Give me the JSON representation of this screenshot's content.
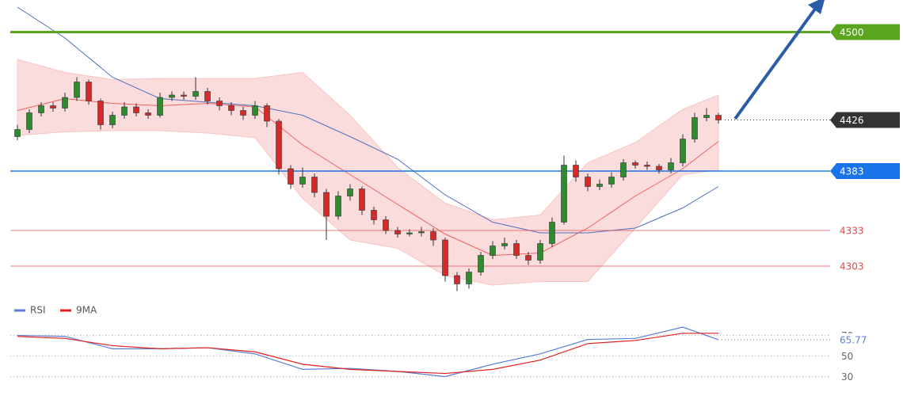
{
  "chart_data": {
    "type": "candlestick",
    "xlim": [
      -1,
      66
    ],
    "ylim": [
      4277,
      4527
    ],
    "open": [
      4412,
      4418,
      4432,
      4438,
      4436,
      4445,
      4458,
      4442,
      4422,
      4430,
      4437,
      4432,
      4430,
      4445,
      4447,
      4446,
      4450,
      4442,
      4438,
      4434,
      4430,
      4438,
      4425,
      4385,
      4372,
      4378,
      4365,
      4345,
      4362,
      4368,
      4350,
      4342,
      4333,
      4330,
      4331,
      4332,
      4325,
      4295,
      4288,
      4298,
      4312,
      4320,
      4322,
      4312,
      4308,
      4322,
      4340,
      4388,
      4378,
      4370,
      4372,
      4378,
      4390,
      4388,
      4387,
      4384,
      4390,
      4410,
      4428,
      4430
    ],
    "high": [
      4422,
      4435,
      4441,
      4441,
      4449,
      4462,
      4460,
      4444,
      4433,
      4441,
      4440,
      4435,
      4449,
      4450,
      4450,
      4462,
      4453,
      4445,
      4441,
      4437,
      4442,
      4440,
      4427,
      4388,
      4386,
      4381,
      4368,
      4366,
      4372,
      4370,
      4353,
      4345,
      4336,
      4334,
      4336,
      4335,
      4327,
      4298,
      4301,
      4315,
      4324,
      4327,
      4325,
      4315,
      4325,
      4344,
      4396,
      4392,
      4381,
      4376,
      4382,
      4393,
      4392,
      4391,
      4389,
      4394,
      4414,
      4432,
      4436,
      4432
    ],
    "low": [
      4409,
      4415,
      4429,
      4433,
      4433,
      4442,
      4439,
      4418,
      4419,
      4427,
      4429,
      4427,
      4428,
      4442,
      4443,
      4443,
      4439,
      4434,
      4430,
      4426,
      4427,
      4420,
      4380,
      4368,
      4369,
      4361,
      4325,
      4342,
      4358,
      4346,
      4338,
      4330,
      4327,
      4328,
      4328,
      4320,
      4290,
      4282,
      4284,
      4295,
      4309,
      4317,
      4309,
      4304,
      4305,
      4319,
      4338,
      4374,
      4366,
      4367,
      4369,
      4375,
      4385,
      4384,
      4381,
      4381,
      4387,
      4407,
      4425,
      4423
    ],
    "close": [
      4418,
      4432,
      4438,
      4436,
      4445,
      4458,
      4442,
      4422,
      4430,
      4437,
      4432,
      4430,
      4445,
      4447,
      4446,
      4450,
      4442,
      4438,
      4434,
      4430,
      4438,
      4425,
      4385,
      4372,
      4378,
      4365,
      4345,
      4362,
      4368,
      4350,
      4342,
      4333,
      4330,
      4331,
      4332,
      4325,
      4295,
      4288,
      4298,
      4312,
      4320,
      4322,
      4312,
      4308,
      4322,
      4340,
      4388,
      4378,
      4370,
      4372,
      4378,
      4390,
      4388,
      4387,
      4384,
      4390,
      4410,
      4428,
      4430,
      4426
    ],
    "up_color": "#2e8b2e",
    "down_color": "#d42a2a",
    "indicator_x": [
      0,
      4,
      8,
      12,
      16,
      20,
      24,
      28,
      32,
      36,
      40,
      44,
      48,
      52,
      56,
      59
    ],
    "band_upper": [
      4477,
      4466,
      4460,
      4461,
      4461,
      4461,
      4466,
      4430,
      4386,
      4356,
      4342,
      4346,
      4390,
      4407,
      4435,
      4447
    ],
    "band_lower": [
      4413,
      4416,
      4417,
      4417,
      4415,
      4411,
      4360,
      4325,
      4318,
      4295,
      4287,
      4290,
      4290,
      4335,
      4380,
      4384
    ],
    "band_color": "#f9c4c4",
    "lines": [
      {
        "color": "#f06060",
        "values": [
          4434,
          4444,
          4440,
          4438,
          4440,
          4437,
          4405,
          4380,
          4355,
          4330,
          4312,
          4314,
          4335,
          4362,
          4385,
          4408
        ]
      },
      {
        "color": "#5070c0",
        "values": [
          4521,
          4495,
          4462,
          4444,
          4441,
          4438,
          4430,
          4412,
          4393,
          4363,
          4340,
          4331,
          4331,
          4335,
          4352,
          4370
        ]
      }
    ],
    "levels": [
      {
        "value": 4500,
        "color": "#5aa51e",
        "style": "box"
      },
      {
        "value": 4426,
        "color": "#333333",
        "style": "dotted-box"
      },
      {
        "value": 4383,
        "color": "#1a73e8",
        "style": "box"
      },
      {
        "value": 4333,
        "color": "#e04848",
        "style": "text"
      },
      {
        "value": 4303,
        "color": "#e04848",
        "style": "text"
      }
    ],
    "rsi": {
      "ylim": [
        15,
        88
      ],
      "yticks": [
        70,
        50,
        30
      ],
      "series": [
        {
          "name": "RSI",
          "color": "#5b7fd8",
          "values": [
            70,
            69,
            57,
            57,
            58,
            52,
            37,
            38,
            35,
            30,
            42,
            52,
            66,
            67,
            78,
            65.77
          ]
        },
        {
          "name": "9MA",
          "color": "#e02020",
          "values": [
            69,
            67,
            60,
            57,
            58,
            54,
            42,
            37,
            35,
            33,
            37,
            46,
            62,
            65,
            72,
            72
          ]
        }
      ],
      "last_label": "65.77"
    }
  }
}
